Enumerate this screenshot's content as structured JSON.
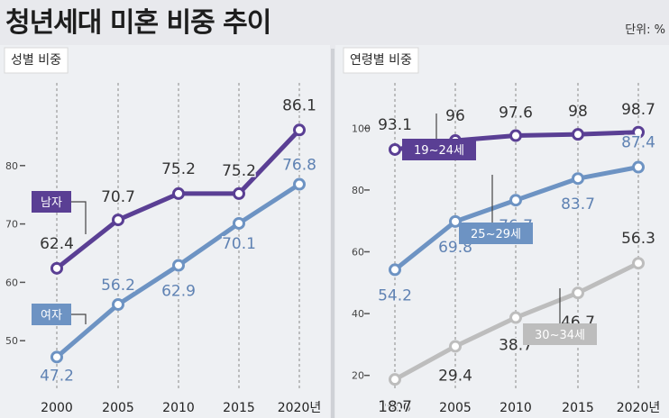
{
  "page": {
    "title": "청년세대 미혼 비중 추이",
    "unit": "단위: %"
  },
  "colors": {
    "purple": "#5a3f94",
    "blue": "#6d93c3",
    "gray": "#bdbdbd",
    "text_dark": "#333333"
  },
  "chart_data": [
    {
      "type": "line",
      "title": "성별 비중",
      "x": [
        "2000",
        "2005",
        "2010",
        "2015",
        "2020년"
      ],
      "ylim": [
        40,
        90
      ],
      "yticks": [
        50,
        60,
        70,
        80
      ],
      "grid": "vertical dashed",
      "series": [
        {
          "name": "남자",
          "color": "#5a3f94",
          "values": [
            62.4,
            70.7,
            75.2,
            75.2,
            86.1
          ],
          "labels": [
            "62.4",
            "70.7",
            "75.2",
            "75.2",
            "86.1"
          ]
        },
        {
          "name": "여자",
          "color": "#6d93c3",
          "values": [
            47.2,
            56.2,
            62.9,
            70.1,
            76.8
          ],
          "labels": [
            "47.2",
            "56.2",
            "62.9",
            "70.1",
            "76.8"
          ]
        }
      ]
    },
    {
      "type": "line",
      "title": "연령별 비중",
      "x": [
        "2000",
        "2005",
        "2010",
        "2015",
        "2020년"
      ],
      "ylim": [
        10,
        100
      ],
      "yticks": [
        20,
        40,
        60,
        80,
        100
      ],
      "grid": "vertical dashed",
      "series": [
        {
          "name": "19~24세",
          "color": "#5a3f94",
          "values": [
            93.1,
            96,
            97.6,
            98,
            98.7
          ],
          "labels": [
            "93.1",
            "96",
            "97.6",
            "98",
            "98.7"
          ]
        },
        {
          "name": "25~29세",
          "color": "#6d93c3",
          "values": [
            54.2,
            69.8,
            76.7,
            83.7,
            87.4
          ],
          "labels": [
            "54.2",
            "69.8",
            "76.7",
            "83.7",
            "87.4"
          ]
        },
        {
          "name": "30~34세",
          "color": "#bdbdbd",
          "values": [
            18.7,
            29.4,
            38.7,
            46.7,
            56.3
          ],
          "labels": [
            "18.7",
            "29.4",
            "38.7",
            "46.7",
            "56.3"
          ]
        }
      ]
    }
  ]
}
